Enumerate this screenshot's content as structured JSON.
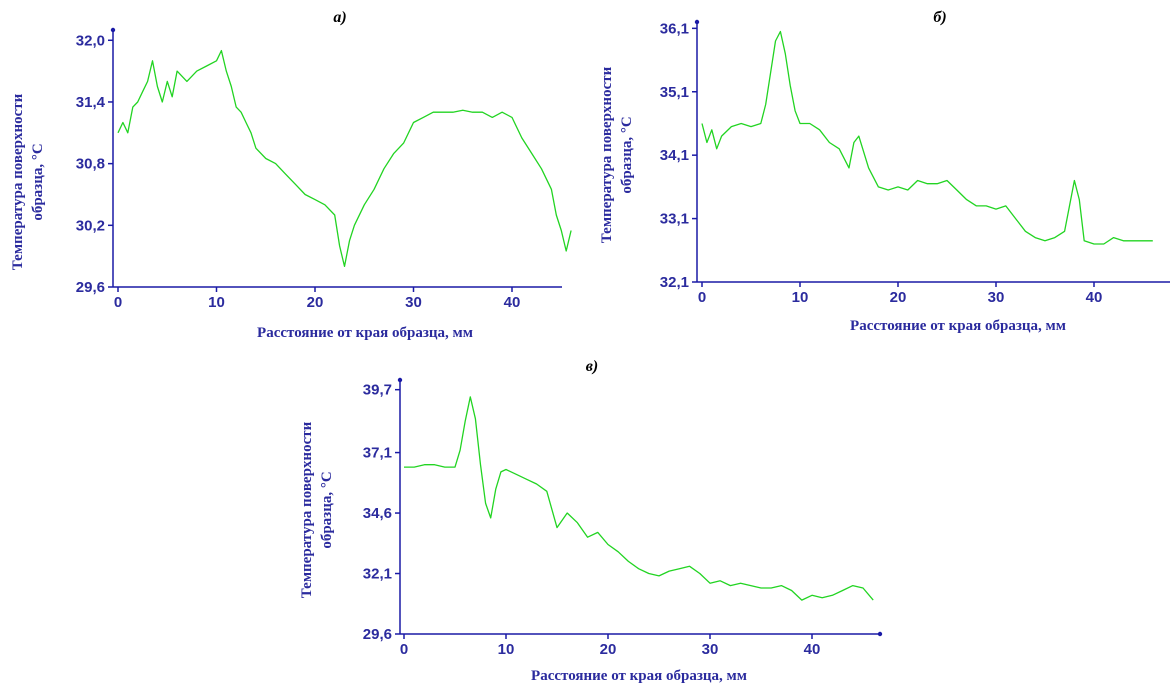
{
  "colors": {
    "axis": "#1a1aa6",
    "labels": "#2b2b9e",
    "line": "#22d422"
  },
  "chart_data": [
    {
      "type": "line",
      "panel_label": "а)",
      "ylabel_line1": "Температура поверхности",
      "ylabel_line2": "образца, °C",
      "xlabel": "Расстояние от края образца, мм",
      "xlim": [
        0,
        46
      ],
      "ylim": [
        29.6,
        32.1
      ],
      "xticks": [
        0,
        10,
        20,
        30,
        40
      ],
      "yticks": [
        29.6,
        30.2,
        30.8,
        31.4,
        32.0
      ],
      "ytick_labels": [
        "29,6",
        "30,2",
        "30,8",
        "31,4",
        "32,0"
      ],
      "series": [
        {
          "x": [
            0,
            0.5,
            1,
            1.5,
            2,
            2.5,
            3,
            3.5,
            4,
            4.5,
            5,
            5.5,
            6,
            7,
            8,
            9,
            10,
            10.5,
            11,
            11.5,
            12,
            12.5,
            13,
            13.5,
            14,
            15,
            16,
            17,
            18,
            19,
            20,
            21,
            22,
            22.5,
            23,
            23.5,
            24,
            25,
            26,
            27,
            28,
            29,
            30,
            31,
            32,
            33,
            34,
            35,
            36,
            37,
            38,
            39,
            40,
            41,
            42,
            43,
            44,
            44.5,
            45,
            45.5,
            46
          ],
          "y": [
            31.1,
            31.2,
            31.1,
            31.35,
            31.4,
            31.5,
            31.6,
            31.8,
            31.55,
            31.4,
            31.6,
            31.45,
            31.7,
            31.6,
            31.7,
            31.75,
            31.8,
            31.9,
            31.7,
            31.55,
            31.35,
            31.3,
            31.2,
            31.1,
            30.95,
            30.85,
            30.8,
            30.7,
            30.6,
            30.5,
            30.45,
            30.4,
            30.3,
            30.0,
            29.8,
            30.05,
            30.2,
            30.4,
            30.55,
            30.75,
            30.9,
            31.0,
            31.2,
            31.25,
            31.3,
            31.3,
            31.3,
            31.32,
            31.3,
            31.3,
            31.25,
            31.3,
            31.25,
            31.05,
            30.9,
            30.75,
            30.55,
            30.3,
            30.15,
            29.95,
            30.15
          ]
        }
      ]
    },
    {
      "type": "line",
      "panel_label": "б)",
      "ylabel_line1": "Температура поверхности",
      "ylabel_line2": "образца, °C",
      "xlabel": "Расстояние от края образца, мм",
      "xlim": [
        0,
        46
      ],
      "ylim": [
        32.1,
        36.2
      ],
      "xticks": [
        0,
        10,
        20,
        30,
        40
      ],
      "yticks": [
        32.1,
        33.1,
        34.1,
        35.1,
        36.1
      ],
      "ytick_labels": [
        "32,1",
        "33,1",
        "34,1",
        "35,1",
        "36,1"
      ],
      "series": [
        {
          "x": [
            0,
            0.5,
            1,
            1.5,
            2,
            3,
            4,
            5,
            6,
            6.5,
            7,
            7.5,
            8,
            8.5,
            9,
            9.5,
            10,
            11,
            12,
            13,
            14,
            15,
            15.5,
            16,
            17,
            18,
            19,
            20,
            21,
            22,
            23,
            24,
            25,
            26,
            27,
            28,
            29,
            30,
            31,
            32,
            33,
            34,
            35,
            36,
            37,
            37.5,
            38,
            38.5,
            39,
            40,
            41,
            42,
            43,
            44,
            45,
            46
          ],
          "y": [
            34.6,
            34.3,
            34.5,
            34.2,
            34.4,
            34.55,
            34.6,
            34.55,
            34.6,
            34.9,
            35.4,
            35.9,
            36.05,
            35.7,
            35.2,
            34.8,
            34.6,
            34.6,
            34.5,
            34.3,
            34.2,
            33.9,
            34.3,
            34.4,
            33.9,
            33.6,
            33.55,
            33.6,
            33.55,
            33.7,
            33.65,
            33.65,
            33.7,
            33.55,
            33.4,
            33.3,
            33.3,
            33.25,
            33.3,
            33.1,
            32.9,
            32.8,
            32.75,
            32.8,
            32.9,
            33.3,
            33.7,
            33.4,
            32.75,
            32.7,
            32.7,
            32.8,
            32.75,
            32.75,
            32.75,
            32.75
          ]
        }
      ]
    },
    {
      "type": "line",
      "panel_label": "в)",
      "ylabel_line1": "Температура поверхности",
      "ylabel_line2": "образца, °C",
      "xlabel": "Расстояние от края образца, мм",
      "xlim": [
        0,
        46
      ],
      "ylim": [
        29.6,
        40.1
      ],
      "xticks": [
        0,
        10,
        20,
        30,
        40
      ],
      "yticks": [
        29.6,
        32.1,
        34.6,
        37.1,
        39.7
      ],
      "ytick_labels": [
        "29,6",
        "32,1",
        "34,6",
        "37,1",
        "39,7"
      ],
      "series": [
        {
          "x": [
            0,
            1,
            2,
            3,
            4,
            5,
            5.5,
            6,
            6.5,
            7,
            7.5,
            8,
            8.5,
            9,
            9.5,
            10,
            11,
            12,
            13,
            14,
            15,
            16,
            17,
            18,
            19,
            20,
            21,
            22,
            23,
            24,
            25,
            26,
            27,
            28,
            29,
            30,
            31,
            32,
            33,
            34,
            35,
            36,
            37,
            38,
            39,
            40,
            41,
            42,
            43,
            44,
            45,
            46
          ],
          "y": [
            36.5,
            36.5,
            36.6,
            36.6,
            36.5,
            36.5,
            37.2,
            38.4,
            39.4,
            38.5,
            36.6,
            35.0,
            34.4,
            35.6,
            36.3,
            36.4,
            36.2,
            36.0,
            35.8,
            35.5,
            34.0,
            34.6,
            34.2,
            33.6,
            33.8,
            33.3,
            33.0,
            32.6,
            32.3,
            32.1,
            32.0,
            32.2,
            32.3,
            32.4,
            32.1,
            31.7,
            31.8,
            31.6,
            31.7,
            31.6,
            31.5,
            31.5,
            31.6,
            31.4,
            31.0,
            31.2,
            31.1,
            31.2,
            31.4,
            31.6,
            31.5,
            31.0
          ]
        }
      ]
    }
  ]
}
